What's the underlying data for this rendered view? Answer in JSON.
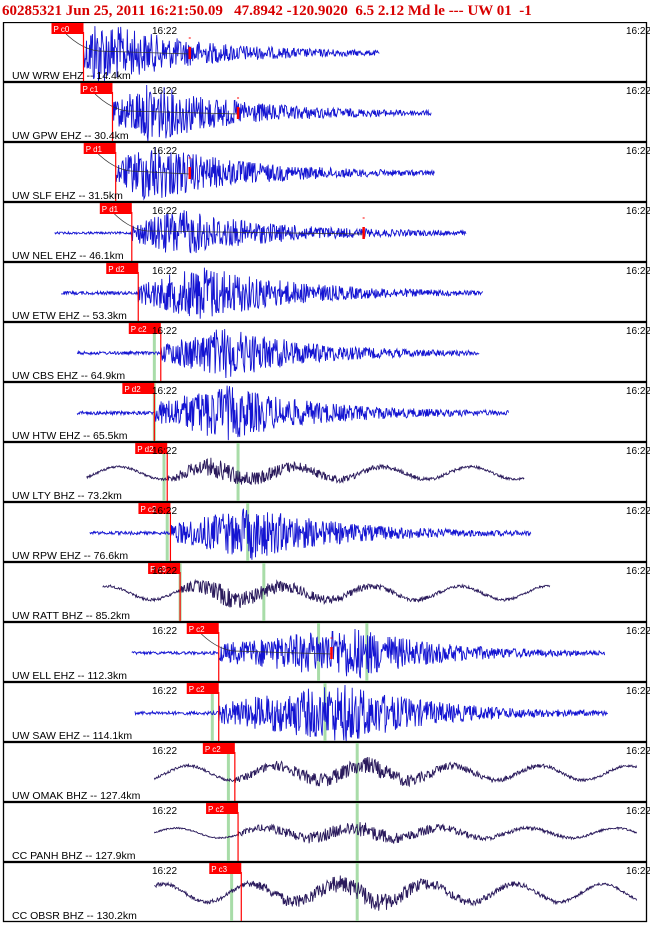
{
  "header": {
    "event_id": "60285321",
    "datetime": "Jun 25, 2011 16:21:50.09",
    "latitude": "47.8942",
    "longitude": "-120.9020",
    "depth": "6.5",
    "magnitude": "2.12",
    "mag_type": "Md",
    "event_type": "le",
    "quality": "---",
    "network": "UW",
    "version": "01",
    "trailing": "-1"
  },
  "chart_data": {
    "type": "line",
    "title": "60285321 Jun 25, 2011 16:21:50.09   47.8942 -120.9020  6.5 2.12 Md le --- UW 01  -1",
    "x_tick_label": "16:22",
    "colors": {
      "short_period": "#1414d2",
      "broadband": "#2a1a5c",
      "pick_flag": "#ff0000",
      "arrival_line": "#a8dca8",
      "frame": "#000000"
    },
    "series": [
      {
        "label": "UW WRW EHZ -- 14.4km",
        "channel": "EHZ",
        "pick_label": "P c0",
        "pick_frac": 0.125,
        "start_frac": 0.125,
        "end_frac": 0.585,
        "amp": 34,
        "peak_frac": 0.14,
        "noise": 0.03,
        "coda_mark_frac": 0.29,
        "moveout": true,
        "green_marks": []
      },
      {
        "label": "UW GPW EHZ -- 30.4km",
        "channel": "EHZ",
        "pick_label": "P c1",
        "pick_frac": 0.17,
        "start_frac": 0.17,
        "end_frac": 0.665,
        "amp": 30,
        "peak_frac": 0.225,
        "noise": 0.02,
        "coda_mark_frac": 0.365,
        "moveout": true,
        "green_marks": []
      },
      {
        "label": "UW SLF EHZ -- 31.5km",
        "channel": "EHZ",
        "pick_label": "P d1",
        "pick_frac": 0.175,
        "start_frac": 0.175,
        "end_frac": 0.67,
        "amp": 30,
        "peak_frac": 0.225,
        "noise": 0.03,
        "coda_mark_frac": 0.29,
        "moveout": true,
        "green_marks": []
      },
      {
        "label": "UW NEL EHZ -- 46.1km",
        "channel": "EHZ",
        "pick_label": "P d1",
        "pick_frac": 0.2,
        "start_frac": 0.08,
        "end_frac": 0.72,
        "amp": 24,
        "peak_frac": 0.27,
        "noise": 0.05,
        "coda_mark_frac": 0.56,
        "moveout": true,
        "green_marks": []
      },
      {
        "label": "UW ETW EHZ -- 53.3km",
        "channel": "EHZ",
        "pick_label": "P d2",
        "pick_frac": 0.21,
        "start_frac": 0.09,
        "end_frac": 0.745,
        "amp": 28,
        "peak_frac": 0.31,
        "noise": 0.12,
        "coda_mark_frac": null,
        "moveout": false,
        "green_marks": []
      },
      {
        "label": "UW CBS EHZ -- 64.9km",
        "channel": "EHZ",
        "pick_label": "P c2",
        "pick_frac": 0.245,
        "start_frac": 0.115,
        "end_frac": 0.74,
        "amp": 26,
        "peak_frac": 0.345,
        "noise": 0.12,
        "coda_mark_frac": null,
        "moveout": false,
        "green_marks": [
          0.235
        ]
      },
      {
        "label": "UW HTW EHZ -- 65.5km",
        "channel": "EHZ",
        "pick_label": "P d2",
        "pick_frac": 0.235,
        "start_frac": 0.115,
        "end_frac": 0.785,
        "amp": 28,
        "peak_frac": 0.34,
        "noise": 0.14,
        "coda_mark_frac": null,
        "moveout": false,
        "green_marks": [
          0.235
        ]
      },
      {
        "label": "UW LTY BHZ -- 73.2km",
        "channel": "BHZ",
        "pick_label": "P d2",
        "pick_frac": 0.255,
        "start_frac": 0.13,
        "end_frac": 0.81,
        "amp": 18,
        "peak_frac": 0.33,
        "noise": 0.3,
        "coda_mark_frac": null,
        "moveout": false,
        "green_marks": [
          0.25,
          0.365
        ]
      },
      {
        "label": "UW RPW EHZ -- 76.6km",
        "channel": "EHZ",
        "pick_label": "P c2",
        "pick_frac": 0.26,
        "start_frac": 0.135,
        "end_frac": 0.82,
        "amp": 26,
        "peak_frac": 0.385,
        "noise": 0.12,
        "coda_mark_frac": null,
        "moveout": false,
        "green_marks": [
          0.255,
          0.38
        ]
      },
      {
        "label": "UW RATT BHZ -- 85.2km",
        "channel": "BHZ",
        "pick_label": "P c3",
        "pick_frac": 0.275,
        "start_frac": 0.155,
        "end_frac": 0.85,
        "amp": 18,
        "peak_frac": 0.335,
        "noise": 0.35,
        "coda_mark_frac": null,
        "moveout": false,
        "green_marks": [
          0.275,
          0.405
        ]
      },
      {
        "label": "UW ELL EHZ -- 112.3km",
        "channel": "EHZ",
        "pick_label": "P c2",
        "pick_frac": 0.335,
        "start_frac": 0.2,
        "end_frac": 0.935,
        "amp": 26,
        "peak_frac": 0.545,
        "noise": 0.1,
        "coda_mark_frac": 0.51,
        "moveout": true,
        "green_marks": [
          0.49,
          0.565
        ]
      },
      {
        "label": "UW SAW EHZ -- 114.1km",
        "channel": "EHZ",
        "pick_label": "P c2",
        "pick_frac": 0.335,
        "start_frac": 0.205,
        "end_frac": 0.94,
        "amp": 30,
        "peak_frac": 0.53,
        "noise": 0.12,
        "coda_mark_frac": null,
        "moveout": false,
        "green_marks": [
          0.325,
          0.5
        ]
      },
      {
        "label": "UW OMAK BHZ -- 127.4km",
        "channel": "BHZ",
        "pick_label": "P c2",
        "pick_frac": 0.36,
        "start_frac": 0.235,
        "end_frac": 0.985,
        "amp": 16,
        "peak_frac": 0.565,
        "noise": 0.4,
        "coda_mark_frac": null,
        "moveout": false,
        "green_marks": [
          0.35,
          0.55
        ]
      },
      {
        "label": "CC PANH BHZ -- 127.9km",
        "channel": "BHZ",
        "pick_label": "P c2",
        "pick_frac": 0.365,
        "start_frac": 0.235,
        "end_frac": 0.985,
        "amp": 14,
        "peak_frac": 0.56,
        "noise": 0.15,
        "coda_mark_frac": null,
        "moveout": false,
        "green_marks": [
          0.35,
          0.55
        ]
      },
      {
        "label": "CC OBSR BHZ -- 130.2km",
        "channel": "BHZ",
        "pick_label": "P c3",
        "pick_frac": 0.37,
        "start_frac": 0.235,
        "end_frac": 0.985,
        "amp": 18,
        "peak_frac": 0.565,
        "noise": 0.6,
        "coda_mark_frac": null,
        "moveout": false,
        "green_marks": [
          0.355,
          0.55
        ]
      }
    ]
  }
}
